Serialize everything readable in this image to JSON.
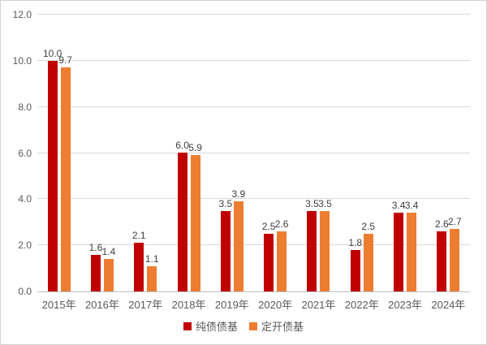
{
  "chart_data": {
    "type": "bar",
    "title": "",
    "xlabel": "",
    "ylabel": "",
    "categories": [
      "2015年",
      "2016年",
      "2017年",
      "2018年",
      "2019年",
      "2020年",
      "2021年",
      "2022年",
      "2023年",
      "2024年"
    ],
    "series": [
      {
        "name": "纯债债基",
        "color": "#C00000",
        "values": [
          10.0,
          1.6,
          2.1,
          6.0,
          3.5,
          2.5,
          3.5,
          1.8,
          3.4,
          2.6
        ]
      },
      {
        "name": "定开债基",
        "color": "#ED7D31",
        "values": [
          9.7,
          1.4,
          1.1,
          5.9,
          3.9,
          2.6,
          3.5,
          2.5,
          3.4,
          2.7
        ]
      }
    ],
    "ylim": [
      0,
      12
    ],
    "yticks": [
      0,
      2,
      4,
      6,
      8,
      10,
      12
    ],
    "ytick_labels": [
      "0.0",
      "2.0",
      "4.0",
      "6.0",
      "8.0",
      "10.0",
      "12.0"
    ],
    "grid": true,
    "data_labels": true,
    "legend_position": "bottom"
  },
  "colors": {
    "series1": "#C00000",
    "series2": "#ED7D31",
    "gridline": "#D9D9D9",
    "axis_line": "#BFBFBF",
    "tick_text": "#595959",
    "value_text": "#404040",
    "background": "#FFFFFF",
    "border": "#D2D2D2"
  }
}
